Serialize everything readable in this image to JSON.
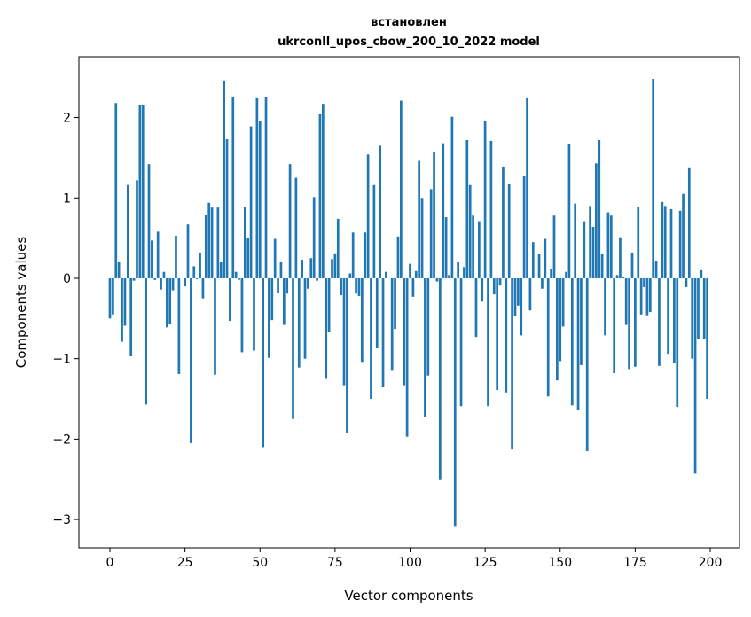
{
  "chart_data": {
    "type": "bar",
    "title_line1": "встановлен",
    "title_line2": "ukrconll_upos_cbow_200_10_2022 model",
    "xlabel": "Vector components",
    "ylabel": "Components values",
    "xlim": [
      -10.34,
      209.75
    ],
    "ylim": [
      -3.352,
      2.756
    ],
    "xticks": [
      0,
      25,
      50,
      75,
      100,
      125,
      150,
      175,
      200
    ],
    "xtick_labels": [
      "0",
      "25",
      "50",
      "75",
      "100",
      "125",
      "150",
      "175",
      "200"
    ],
    "yticks": [
      -3,
      -2,
      -1,
      0,
      1,
      2
    ],
    "ytick_labels": [
      "−3",
      "−2",
      "−1",
      "0",
      "1",
      "2"
    ],
    "grid": false,
    "bar_color": "#1f77b4",
    "bar_width": 0.8,
    "values": [
      -0.5,
      -0.45,
      2.18,
      0.21,
      -0.79,
      -0.59,
      1.16,
      -0.97,
      -0.03,
      1.22,
      2.16,
      2.16,
      -1.57,
      1.42,
      0.47,
      -0.02,
      0.58,
      -0.14,
      0.08,
      -0.61,
      -0.57,
      -0.15,
      0.53,
      -1.19,
      0.0,
      -0.1,
      0.67,
      -2.05,
      0.15,
      -0.01,
      0.32,
      -0.25,
      0.79,
      0.94,
      0.88,
      -1.2,
      0.88,
      0.2,
      2.46,
      1.73,
      -0.53,
      2.26,
      0.08,
      -0.02,
      -0.92,
      0.89,
      0.5,
      1.89,
      -0.9,
      2.25,
      1.96,
      -2.1,
      2.26,
      -0.99,
      -0.52,
      0.49,
      -0.18,
      0.21,
      -0.58,
      -0.19,
      1.42,
      -1.75,
      1.25,
      -1.11,
      0.23,
      -1.0,
      -0.13,
      0.25,
      1.01,
      -0.03,
      2.04,
      2.17,
      -1.24,
      -0.67,
      0.24,
      0.31,
      0.74,
      -0.21,
      -1.33,
      -1.92,
      0.06,
      0.57,
      -0.19,
      -0.22,
      -1.04,
      0.57,
      1.54,
      -1.5,
      1.16,
      -0.86,
      1.65,
      -1.35,
      0.08,
      0.0,
      -1.14,
      -0.63,
      0.52,
      2.21,
      -1.33,
      -1.97,
      0.18,
      -0.23,
      0.09,
      1.46,
      1.0,
      -1.72,
      -1.21,
      1.11,
      1.57,
      -0.04,
      -2.5,
      1.68,
      0.76,
      0.04,
      2.01,
      -3.08,
      0.2,
      -1.59,
      0.14,
      1.72,
      1.16,
      0.78,
      -0.73,
      0.71,
      -0.29,
      1.96,
      -1.59,
      1.71,
      -0.2,
      -1.39,
      -0.09,
      1.39,
      -1.42,
      1.17,
      -2.13,
      -0.47,
      -0.34,
      -0.71,
      1.27,
      2.25,
      -0.4,
      0.45,
      0.0,
      0.3,
      -0.13,
      0.49,
      -1.47,
      0.11,
      0.78,
      -1.27,
      -1.03,
      -0.6,
      0.08,
      1.67,
      -1.58,
      0.93,
      -1.64,
      -1.08,
      0.71,
      -2.15,
      0.9,
      0.64,
      1.43,
      1.72,
      0.3,
      -0.71,
      0.82,
      0.78,
      -1.18,
      0.04,
      0.51,
      0.02,
      -0.58,
      -1.13,
      0.32,
      -1.1,
      0.89,
      -0.45,
      -0.11,
      -0.46,
      -0.42,
      2.48,
      0.22,
      -1.09,
      0.95,
      0.9,
      -0.94,
      0.86,
      -1.05,
      -1.6,
      0.84,
      1.05,
      -0.11,
      1.38,
      -1.0,
      -2.43,
      -0.75,
      0.1,
      -0.75,
      -1.5
    ]
  }
}
